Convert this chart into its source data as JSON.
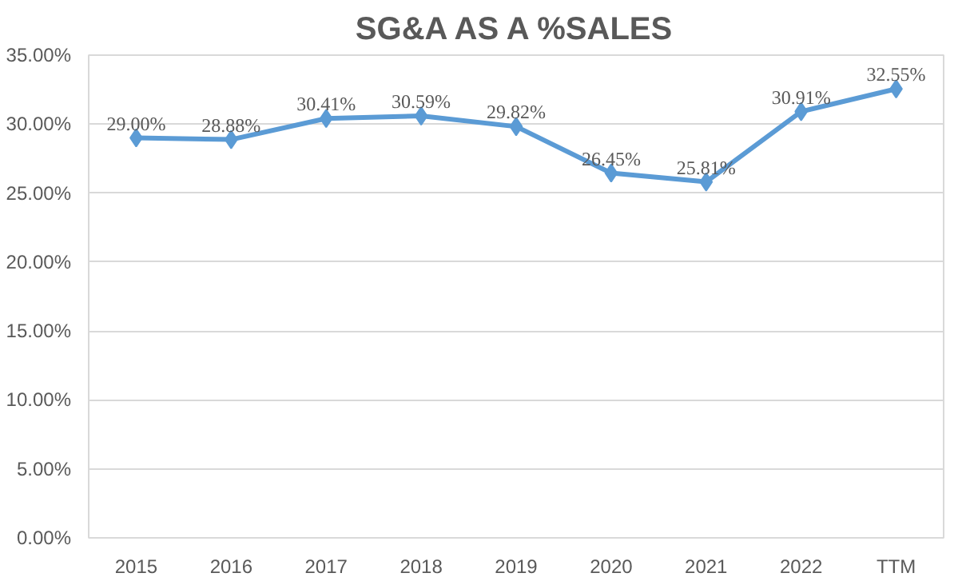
{
  "chart_data": {
    "type": "line",
    "title": "SG&A AS A %SALES",
    "categories": [
      "2015",
      "2016",
      "2017",
      "2018",
      "2019",
      "2020",
      "2021",
      "2022",
      "TTM"
    ],
    "series": [
      {
        "color": "#5b9bd5",
        "values": [
          29.0,
          28.88,
          30.41,
          30.59,
          29.82,
          26.45,
          25.81,
          30.91,
          32.55
        ],
        "value_labels": [
          "29.00%",
          "28.88%",
          "30.41%",
          "30.59%",
          "29.82%",
          "26.45%",
          "25.81%",
          "30.91%",
          "32.55%"
        ]
      }
    ],
    "ylim": [
      0,
      35
    ],
    "yticks": [
      {
        "value": 0,
        "label": "0.00%"
      },
      {
        "value": 5,
        "label": "5.00%"
      },
      {
        "value": 10,
        "label": "10.00%"
      },
      {
        "value": 15,
        "label": "15.00%"
      },
      {
        "value": 20,
        "label": "20.00%"
      },
      {
        "value": 25,
        "label": "25.00%"
      },
      {
        "value": 30,
        "label": "30.00%"
      },
      {
        "value": 35,
        "label": "35.00%"
      }
    ],
    "grid": "y",
    "marker": "diamond",
    "line_style": "solid"
  }
}
